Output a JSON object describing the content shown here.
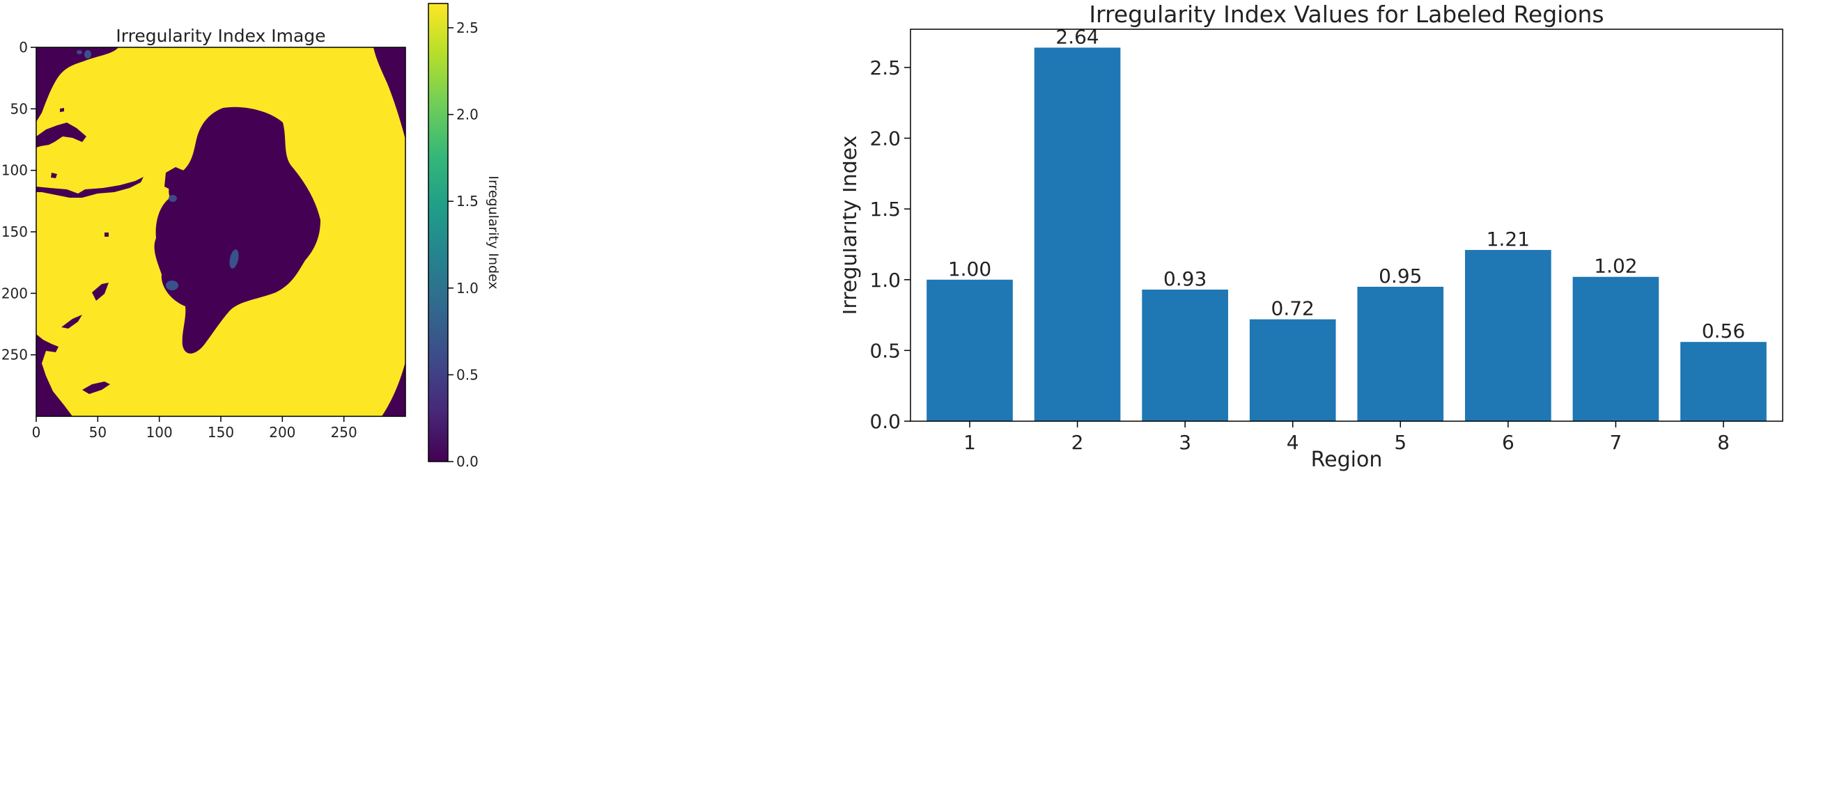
{
  "chart_data": [
    {
      "type": "heatmap",
      "title": "Irregularity Index Image",
      "xlabel": "",
      "ylabel": "",
      "x_ticks": [
        0,
        50,
        100,
        150,
        200,
        250
      ],
      "y_ticks": [
        0,
        50,
        100,
        150,
        200,
        250
      ],
      "xlim": [
        0,
        300
      ],
      "ylim": [
        300,
        0
      ],
      "colormap": "viridis",
      "background_color": "#fde725",
      "region_colors": {
        "region_0": "#440154",
        "region_0_56": "#3e4a89",
        "region_1": "#3a528b"
      },
      "colorbar": {
        "label": "Irregularity Index",
        "range": [
          0,
          2.64
        ],
        "ticks": [
          "0.0",
          "0.5",
          "1.0",
          "1.5",
          "2.0",
          "2.5"
        ],
        "tick_values": [
          0,
          0.5,
          1.0,
          1.5,
          2.0,
          2.5
        ],
        "stops": [
          "#440154",
          "#482878",
          "#3e4a89",
          "#31688e",
          "#26828e",
          "#1f9e89",
          "#35b779",
          "#6ece58",
          "#b5de2b",
          "#fde725"
        ]
      }
    },
    {
      "type": "bar",
      "title": "Irregularity Index Values for Labeled Regions",
      "xlabel": "Region",
      "ylabel": "Irregularity Index",
      "categories": [
        "1",
        "2",
        "3",
        "4",
        "5",
        "6",
        "7",
        "8"
      ],
      "values": [
        1.0,
        2.64,
        0.93,
        0.72,
        0.95,
        1.21,
        1.02,
        0.56
      ],
      "value_labels": [
        "1.00",
        "2.64",
        "0.93",
        "0.72",
        "0.95",
        "1.21",
        "1.02",
        "0.56"
      ],
      "ylim": [
        0,
        2.77
      ],
      "y_ticks": [
        "0.0",
        "0.5",
        "1.0",
        "1.5",
        "2.0",
        "2.5"
      ],
      "y_tick_values": [
        0,
        0.5,
        1.0,
        1.5,
        2.0,
        2.5
      ],
      "bar_color": "#1f77b4",
      "grid": false
    }
  ]
}
